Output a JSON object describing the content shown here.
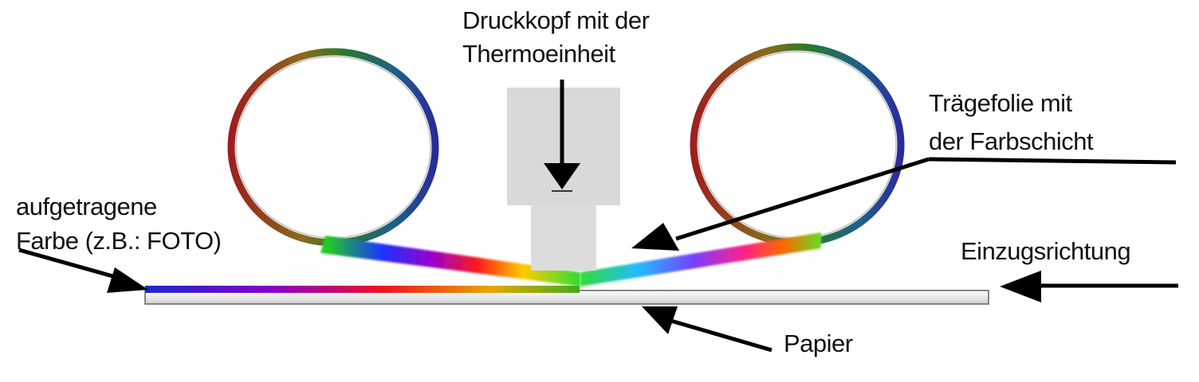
{
  "labels": {
    "printhead_line1": "Druckkopf mit der",
    "printhead_line2": "Thermoeinheit",
    "foil_line1": "Trägefolie mit",
    "foil_line2": "der Farbschicht",
    "applied_line1": "aufgetragene",
    "applied_line2": "Farbe (z.B.: FOTO)",
    "feed_direction": "Einzugsrichtung",
    "paper": "Papier"
  },
  "colors": {
    "spectrum": [
      "#ff0000",
      "#ff9900",
      "#ffee00",
      "#33cc33",
      "#00cccc",
      "#2255ff",
      "#8a00c8"
    ],
    "printhead": "#d9d9d9",
    "paper_fill": "#f5f5f5",
    "arrow": "#000000"
  }
}
